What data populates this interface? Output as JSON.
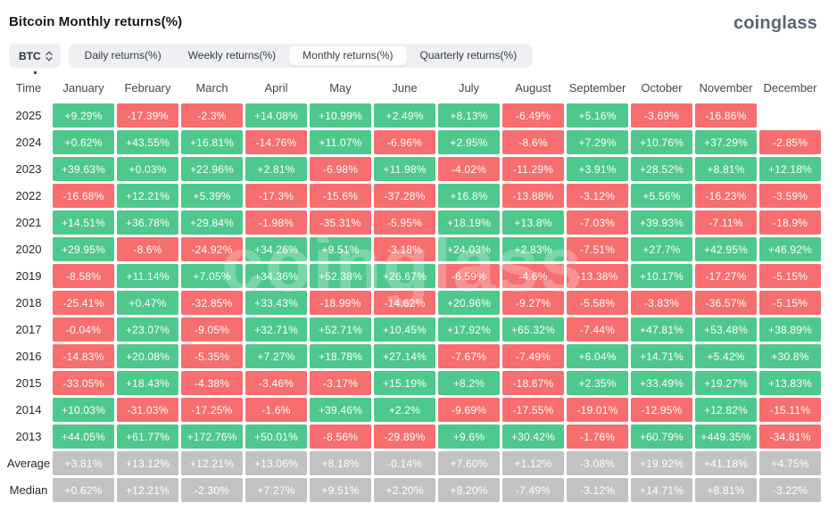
{
  "header": {
    "title": "Bitcoin Monthly returns(%)",
    "logo": "coinglass"
  },
  "toolbar": {
    "coin_selector": {
      "label": "BTC",
      "icon": "up-down-chevrons-icon"
    },
    "tabs": [
      {
        "label": "Daily returns(%)",
        "active": false
      },
      {
        "label": "Weekly returns(%)",
        "active": false
      },
      {
        "label": "Monthly returns(%)",
        "active": true
      },
      {
        "label": "Quarterly returns(%)",
        "active": false
      }
    ]
  },
  "theme": {
    "green": "#4ec88c",
    "red": "#f76e6e",
    "gray": "#c2c2c2",
    "tab_bar_bg": "#eef0f4",
    "active_tab_bg": "#ffffff"
  },
  "watermark_text": "coinglass",
  "chart_data": {
    "type": "heatmap",
    "title": "Bitcoin Monthly returns(%)",
    "columns": [
      "Time",
      "January",
      "February",
      "March",
      "April",
      "May",
      "June",
      "July",
      "August",
      "September",
      "October",
      "November",
      "December"
    ],
    "rows": [
      {
        "label": "2025",
        "type": "year",
        "values": [
          "+9.29%",
          "-17.39%",
          "-2.3%",
          "+14.08%",
          "+10.99%",
          "+2.49%",
          "+8.13%",
          "-6.49%",
          "+5.16%",
          "-3.69%",
          "-16.86%",
          null
        ]
      },
      {
        "label": "2024",
        "type": "year",
        "values": [
          "+0.62%",
          "+43.55%",
          "+16.81%",
          "-14.76%",
          "+11.07%",
          "-6.96%",
          "+2.95%",
          "-8.6%",
          "+7.29%",
          "+10.76%",
          "+37.29%",
          "-2.85%"
        ]
      },
      {
        "label": "2023",
        "type": "year",
        "values": [
          "+39.63%",
          "+0.03%",
          "+22.96%",
          "+2.81%",
          "-6.98%",
          "+11.98%",
          "-4.02%",
          "-11.29%",
          "+3.91%",
          "+28.52%",
          "+8.81%",
          "+12.18%"
        ]
      },
      {
        "label": "2022",
        "type": "year",
        "values": [
          "-16.68%",
          "+12.21%",
          "+5.39%",
          "-17.3%",
          "-15.6%",
          "-37.28%",
          "+16.8%",
          "-13.88%",
          "-3.12%",
          "+5.56%",
          "-16.23%",
          "-3.59%"
        ]
      },
      {
        "label": "2021",
        "type": "year",
        "values": [
          "+14.51%",
          "+36.78%",
          "+29.84%",
          "-1.98%",
          "-35.31%",
          "-5.95%",
          "+18.19%",
          "+13.8%",
          "-7.03%",
          "+39.93%",
          "-7.11%",
          "-18.9%"
        ]
      },
      {
        "label": "2020",
        "type": "year",
        "values": [
          "+29.95%",
          "-8.6%",
          "-24.92%",
          "+34.26%",
          "+9.51%",
          "-3.18%",
          "+24.03%",
          "+2.83%",
          "-7.51%",
          "+27.7%",
          "+42.95%",
          "+46.92%"
        ]
      },
      {
        "label": "2019",
        "type": "year",
        "values": [
          "-8.58%",
          "+11.14%",
          "+7.05%",
          "+34.36%",
          "+52.38%",
          "+26.67%",
          "-6.59%",
          "-4.6%",
          "-13.38%",
          "+10.17%",
          "-17.27%",
          "-5.15%"
        ]
      },
      {
        "label": "2018",
        "type": "year",
        "values": [
          "-25.41%",
          "+0.47%",
          "-32.85%",
          "+33.43%",
          "-18.99%",
          "-14.62%",
          "+20.96%",
          "-9.27%",
          "-5.58%",
          "-3.83%",
          "-36.57%",
          "-5.15%"
        ]
      },
      {
        "label": "2017",
        "type": "year",
        "values": [
          "-0.04%",
          "+23.07%",
          "-9.05%",
          "+32.71%",
          "+52.71%",
          "+10.45%",
          "+17.92%",
          "+65.32%",
          "-7.44%",
          "+47.81%",
          "+53.48%",
          "+38.89%"
        ]
      },
      {
        "label": "2016",
        "type": "year",
        "values": [
          "-14.83%",
          "+20.08%",
          "-5.35%",
          "+7.27%",
          "+18.78%",
          "+27.14%",
          "-7.67%",
          "-7.49%",
          "+6.04%",
          "+14.71%",
          "+5.42%",
          "+30.8%"
        ]
      },
      {
        "label": "2015",
        "type": "year",
        "values": [
          "-33.05%",
          "+18.43%",
          "-4.38%",
          "-3.46%",
          "-3.17%",
          "+15.19%",
          "+8.2%",
          "-18.67%",
          "+2.35%",
          "+33.49%",
          "+19.27%",
          "+13.83%"
        ]
      },
      {
        "label": "2014",
        "type": "year",
        "values": [
          "+10.03%",
          "-31.03%",
          "-17.25%",
          "-1.6%",
          "+39.46%",
          "+2.2%",
          "-9.69%",
          "-17.55%",
          "-19.01%",
          "-12.95%",
          "+12.82%",
          "-15.11%"
        ]
      },
      {
        "label": "2013",
        "type": "year",
        "values": [
          "+44.05%",
          "+61.77%",
          "+172.76%",
          "+50.01%",
          "-8.56%",
          "-29.89%",
          "+9.6%",
          "+30.42%",
          "-1.76%",
          "+60.79%",
          "+449.35%",
          "-34.81%"
        ]
      },
      {
        "label": "Average",
        "type": "summary",
        "values": [
          "+3.81%",
          "+13.12%",
          "+12.21%",
          "+13.06%",
          "+8.18%",
          "-0.14%",
          "+7.60%",
          "+1.12%",
          "-3.08%",
          "+19.92%",
          "+41.18%",
          "+4.75%"
        ]
      },
      {
        "label": "Median",
        "type": "summary",
        "values": [
          "+0.62%",
          "+12.21%",
          "-2.30%",
          "+7.27%",
          "+9.51%",
          "+2.20%",
          "+8.20%",
          "-7.49%",
          "-3.12%",
          "+14.71%",
          "+8.81%",
          "-3.22%"
        ]
      }
    ],
    "legend": "green = positive monthly return, red = negative monthly return, gray = summary rows"
  }
}
